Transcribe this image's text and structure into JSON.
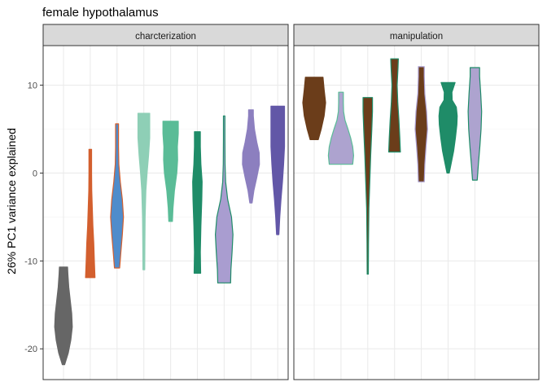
{
  "chart_data": {
    "type": "violin",
    "title": "female hypothalamus",
    "ylabel": "26% PC1 variance explained",
    "xlabel": "",
    "ylim": [
      -23.5,
      14.5
    ],
    "yticks": [
      10,
      0,
      -10,
      -20
    ],
    "grid": true,
    "panels": [
      {
        "label": "charcterization",
        "violins": [
          {
            "fill": "#666666",
            "outline": "#666666",
            "profile": [
              [
                -21.8,
                0.4
              ],
              [
                -20.5,
                1.6
              ],
              [
                -19,
                2.5
              ],
              [
                -17.5,
                3.0
              ],
              [
                -16,
                2.8
              ],
              [
                -14.5,
                2.3
              ],
              [
                -13,
                1.8
              ],
              [
                -11.5,
                1.5
              ],
              [
                -10.7,
                1.4
              ]
            ]
          },
          {
            "fill": "#d35f2e",
            "outline": "#d35f2e",
            "profile": [
              [
                -11.9,
                1.6
              ],
              [
                -10,
                1.4
              ],
              [
                -8,
                1.2
              ],
              [
                -6,
                0.9
              ],
              [
                -4,
                0.7
              ],
              [
                -2,
                0.5
              ],
              [
                0,
                0.45
              ],
              [
                2,
                0.45
              ],
              [
                2.7,
                0.45
              ]
            ]
          },
          {
            "fill": "#4f8ccb",
            "outline": "#d35f2e",
            "profile": [
              [
                -10.8,
                0.9
              ],
              [
                -9,
                1.3
              ],
              [
                -7,
                1.8
              ],
              [
                -5,
                2.2
              ],
              [
                -3,
                1.8
              ],
              [
                -1,
                1.1
              ],
              [
                1,
                0.6
              ],
              [
                3,
                0.5
              ],
              [
                5.6,
                0.5
              ]
            ]
          },
          {
            "fill": "#8ecfb6",
            "outline": "#8ecfb6",
            "profile": [
              [
                -11.0,
                0.3
              ],
              [
                -8,
                0.35
              ],
              [
                -5,
                0.45
              ],
              [
                -2,
                0.7
              ],
              [
                0,
                1.1
              ],
              [
                2,
                1.6
              ],
              [
                4,
                2.0
              ],
              [
                6,
                2.0
              ],
              [
                6.8,
                2.0
              ]
            ]
          },
          {
            "fill": "#5abc97",
            "outline": "#5abc97",
            "profile": [
              [
                -5.5,
                0.6
              ],
              [
                -4,
                0.8
              ],
              [
                -2,
                1.3
              ],
              [
                0,
                2.1
              ],
              [
                1.5,
                2.4
              ],
              [
                3,
                2.3
              ],
              [
                4.5,
                2.6
              ],
              [
                5.9,
                2.6
              ]
            ]
          },
          {
            "fill": "#1f8c68",
            "outline": "#1f8c68",
            "profile": [
              [
                -11.4,
                1.1
              ],
              [
                -9,
                1.0
              ],
              [
                -6,
                1.2
              ],
              [
                -3,
                1.5
              ],
              [
                -1,
                1.6
              ],
              [
                1,
                1.2
              ],
              [
                3,
                1.0
              ],
              [
                4.7,
                1.0
              ]
            ]
          },
          {
            "fill": "#a99dd0",
            "outline": "#1f8c68",
            "profile": [
              [
                -12.5,
                2.2
              ],
              [
                -11,
                2.3
              ],
              [
                -9,
                2.7
              ],
              [
                -7,
                3.0
              ],
              [
                -5,
                2.5
              ],
              [
                -3,
                1.2
              ],
              [
                -1,
                0.5
              ],
              [
                1,
                0.3
              ],
              [
                4,
                0.25
              ],
              [
                6.5,
                0.25
              ]
            ]
          },
          {
            "fill": "#8c7fbf",
            "outline": "#8c7fbf",
            "profile": [
              [
                -3.4,
                0.4
              ],
              [
                -2,
                1.0
              ],
              [
                -0.5,
                2.0
              ],
              [
                1,
                2.9
              ],
              [
                2.3,
                2.8
              ],
              [
                3.5,
                2.0
              ],
              [
                5,
                1.2
              ],
              [
                6.5,
                0.8
              ],
              [
                7.2,
                0.8
              ]
            ]
          },
          {
            "fill": "#6257a7",
            "outline": "#6257a7",
            "profile": [
              [
                -7.0,
                0.4
              ],
              [
                -5,
                0.7
              ],
              [
                -3,
                1.1
              ],
              [
                -1,
                1.6
              ],
              [
                1,
                2.0
              ],
              [
                3,
                2.3
              ],
              [
                5,
                2.3
              ],
              [
                7,
                2.3
              ],
              [
                7.6,
                2.3
              ]
            ]
          }
        ]
      },
      {
        "label": "manipulation",
        "violins": [
          {
            "fill": "#6b3d1a",
            "outline": "#6b3d1a",
            "profile": [
              [
                3.8,
                1.4
              ],
              [
                5,
                2.4
              ],
              [
                6.5,
                3.4
              ],
              [
                8,
                3.9
              ],
              [
                9.5,
                3.4
              ],
              [
                10.9,
                3.0
              ]
            ]
          },
          {
            "fill": "#ada3cf",
            "outline": "#5abc97",
            "profile": [
              [
                1.0,
                4.0
              ],
              [
                2,
                4.3
              ],
              [
                3,
                4.0
              ],
              [
                4,
                3.3
              ],
              [
                5,
                2.4
              ],
              [
                6,
                1.4
              ],
              [
                7,
                0.9
              ],
              [
                8,
                0.8
              ],
              [
                9.2,
                0.8
              ]
            ]
          },
          {
            "fill": "#6b3d1a",
            "outline": "#1f8c68",
            "profile": [
              [
                -11.5,
                0.2
              ],
              [
                -8,
                0.25
              ],
              [
                -4,
                0.4
              ],
              [
                -1,
                0.7
              ],
              [
                2,
                1.0
              ],
              [
                5,
                1.4
              ],
              [
                7,
                1.6
              ],
              [
                8.6,
                1.6
              ]
            ]
          },
          {
            "fill": "#6b3d1a",
            "outline": "#1f8c68",
            "profile": [
              [
                2.4,
                2.0
              ],
              [
                4,
                1.8
              ],
              [
                6,
                1.5
              ],
              [
                8,
                1.1
              ],
              [
                10,
                0.9
              ],
              [
                12,
                1.2
              ],
              [
                13,
                1.3
              ]
            ]
          },
          {
            "fill": "#6b3d1a",
            "outline": "#a99dd0",
            "profile": [
              [
                -1.0,
                1.0
              ],
              [
                1,
                1.2
              ],
              [
                3,
                1.6
              ],
              [
                5,
                2.1
              ],
              [
                7,
                1.8
              ],
              [
                9,
                1.2
              ],
              [
                11,
                1.0
              ],
              [
                12.1,
                1.0
              ]
            ]
          },
          {
            "fill": "#1f8c68",
            "outline": "#1f8c68",
            "profile": [
              [
                0.0,
                0.4
              ],
              [
                1.2,
                1.1
              ],
              [
                2.5,
                1.9
              ],
              [
                4,
                2.5
              ],
              [
                5.5,
                3.0
              ],
              [
                6.5,
                3.1
              ],
              [
                7.5,
                2.8
              ],
              [
                8.3,
                1.4
              ],
              [
                9.2,
                1.3
              ],
              [
                10.3,
                2.4
              ]
            ]
          },
          {
            "fill": "#ada3cf",
            "outline": "#1f8c68",
            "profile": [
              [
                -0.8,
                0.8
              ],
              [
                1,
                1.2
              ],
              [
                3,
                1.7
              ],
              [
                5,
                2.1
              ],
              [
                7,
                2.3
              ],
              [
                9,
                2.0
              ],
              [
                11,
                1.6
              ],
              [
                12,
                1.6
              ]
            ]
          }
        ]
      }
    ]
  }
}
